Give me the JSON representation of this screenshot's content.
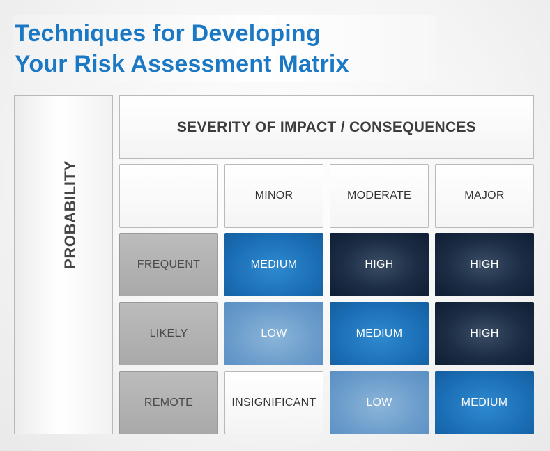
{
  "title": {
    "line1": "Techniques for Developing",
    "line2": "Your Risk Assessment Matrix"
  },
  "matrix": {
    "header": "SEVERITY OF IMPACT / CONSEQUENCES",
    "side_label": "PROBABILITY",
    "columns": [
      "MINOR",
      "MODERATE",
      "MAJOR"
    ],
    "rows": [
      {
        "label": "FREQUENT",
        "cells": [
          "MEDIUM",
          "HIGH",
          "HIGH"
        ]
      },
      {
        "label": "LIKELY",
        "cells": [
          "LOW",
          "MEDIUM",
          "HIGH"
        ]
      },
      {
        "label": "REMOTE",
        "cells": [
          "INSIGNIFICANT",
          "LOW",
          "MEDIUM"
        ]
      }
    ]
  },
  "colors": {
    "title": "#1b78c4",
    "high": "#1b2c44",
    "medium": "#1a6db4",
    "low": "#6a9ccb",
    "insignificant": "#ffffff",
    "row_header": "#b2b2b2"
  }
}
